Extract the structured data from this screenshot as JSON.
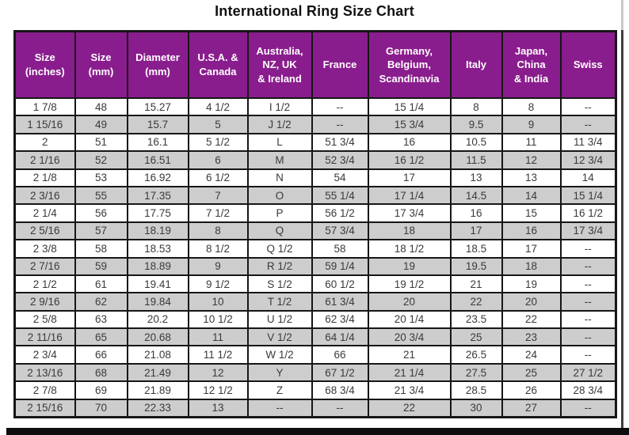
{
  "title": "International Ring Size Chart",
  "colors": {
    "header_bg": "#8a1d8d",
    "header_text": "#ffffff",
    "row_alt_bg": "#cbcbcb",
    "border": "#161616",
    "shadow": "#3d3d3d"
  },
  "chart_data": {
    "type": "table",
    "title": "International Ring Size Chart",
    "columns": [
      "Size\n(inches)",
      "Size\n(mm)",
      "Diameter\n(mm)",
      "U.S.A. &\nCanada",
      "Australia,\nNZ, UK\n& Ireland",
      "France",
      "Germany,\nBelgium,\nScandinavia",
      "Italy",
      "Japan,\nChina\n& India",
      "Swiss"
    ],
    "rows": [
      [
        "1 7/8",
        "48",
        "15.27",
        "4 1/2",
        "I 1/2",
        "--",
        "15 1/4",
        "8",
        "8",
        "--"
      ],
      [
        "1 15/16",
        "49",
        "15.7",
        "5",
        "J 1/2",
        "--",
        "15 3/4",
        "9.5",
        "9",
        "--"
      ],
      [
        "2",
        "51",
        "16.1",
        "5 1/2",
        "L",
        "51 3/4",
        "16",
        "10.5",
        "11",
        "11 3/4"
      ],
      [
        "2 1/16",
        "52",
        "16.51",
        "6",
        "M",
        "52 3/4",
        "16 1/2",
        "11.5",
        "12",
        "12 3/4"
      ],
      [
        "2 1/8",
        "53",
        "16.92",
        "6 1/2",
        "N",
        "54",
        "17",
        "13",
        "13",
        "14"
      ],
      [
        "2 3/16",
        "55",
        "17.35",
        "7",
        "O",
        "55 1/4",
        "17 1/4",
        "14.5",
        "14",
        "15 1/4"
      ],
      [
        "2 1/4",
        "56",
        "17.75",
        "7 1/2",
        "P",
        "56 1/2",
        "17 3/4",
        "16",
        "15",
        "16 1/2"
      ],
      [
        "2 5/16",
        "57",
        "18.19",
        "8",
        "Q",
        "57 3/4",
        "18",
        "17",
        "16",
        "17 3/4"
      ],
      [
        "2 3/8",
        "58",
        "18.53",
        "8 1/2",
        "Q 1/2",
        "58",
        "18 1/2",
        "18.5",
        "17",
        "--"
      ],
      [
        "2 7/16",
        "59",
        "18.89",
        "9",
        "R 1/2",
        "59 1/4",
        "19",
        "19.5",
        "18",
        "--"
      ],
      [
        "2 1/2",
        "61",
        "19.41",
        "9 1/2",
        "S 1/2",
        "60 1/2",
        "19 1/2",
        "21",
        "19",
        "--"
      ],
      [
        "2 9/16",
        "62",
        "19.84",
        "10",
        "T 1/2",
        "61 3/4",
        "20",
        "22",
        "20",
        "--"
      ],
      [
        "2 5/8",
        "63",
        "20.2",
        "10 1/2",
        "U 1/2",
        "62 3/4",
        "20 1/4",
        "23.5",
        "22",
        "--"
      ],
      [
        "2 11/16",
        "65",
        "20.68",
        "11",
        "V 1/2",
        "64 1/4",
        "20 3/4",
        "25",
        "23",
        "--"
      ],
      [
        "2 3/4",
        "66",
        "21.08",
        "11 1/2",
        "W 1/2",
        "66",
        "21",
        "26.5",
        "24",
        "--"
      ],
      [
        "2 13/16",
        "68",
        "21.49",
        "12",
        "Y",
        "67 1/2",
        "21 1/4",
        "27.5",
        "25",
        "27 1/2"
      ],
      [
        "2 7/8",
        "69",
        "21.89",
        "12 1/2",
        "Z",
        "68 3/4",
        "21 3/4",
        "28.5",
        "26",
        "28 3/4"
      ],
      [
        "2 15/16",
        "70",
        "22.33",
        "13",
        "--",
        "--",
        "22",
        "30",
        "27",
        "--"
      ]
    ]
  }
}
